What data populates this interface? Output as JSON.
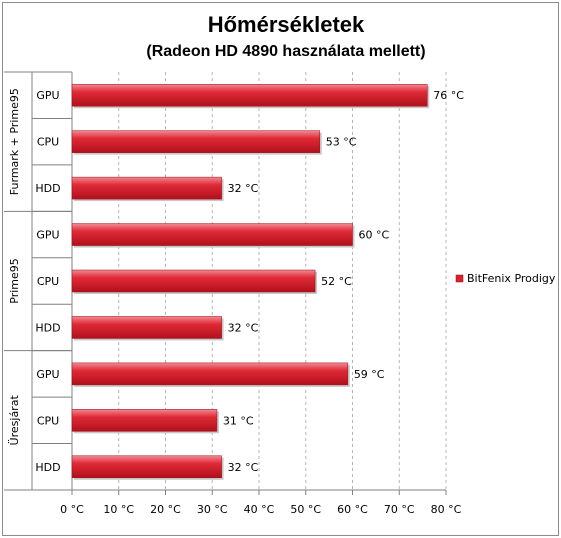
{
  "chart_data": {
    "type": "bar",
    "orientation": "horizontal",
    "title": "Hőmérsékletek",
    "subtitle": "(Radeon HD 4890 használata mellett)",
    "groups": [
      {
        "name": "Furmark + Prime95",
        "categories": [
          "GPU",
          "CPU",
          "HDD"
        ],
        "values": [
          76,
          53,
          32
        ],
        "labels": [
          "76 °C",
          "53 °C",
          "32 °C"
        ]
      },
      {
        "name": "Prime95",
        "categories": [
          "GPU",
          "CPU",
          "HDD"
        ],
        "values": [
          60,
          52,
          32
        ],
        "labels": [
          "60 °C",
          "52 °C",
          "32 °C"
        ]
      },
      {
        "name": "Üresjárat",
        "categories": [
          "GPU",
          "CPU",
          "HDD"
        ],
        "values": [
          59,
          31,
          32
        ],
        "labels": [
          "59 °C",
          "31 °C",
          "32 °C"
        ]
      }
    ],
    "series": [
      {
        "name": "BitFenix Prodigy",
        "color": "#d9202e"
      }
    ],
    "xlim": [
      0,
      80
    ],
    "xticks": [
      "0 °C",
      "10 °C",
      "20 °C",
      "30 °C",
      "40 °C",
      "50 °C",
      "60 °C",
      "70 °C",
      "80 °C"
    ],
    "grid": "vertical dashed",
    "legend_position": "right"
  }
}
